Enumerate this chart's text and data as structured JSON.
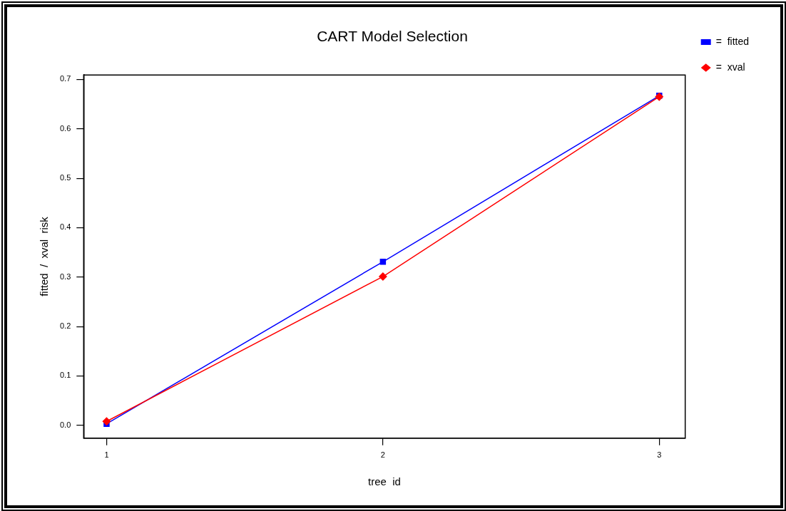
{
  "chart_data": {
    "type": "line",
    "title": "CART Model Selection",
    "xlabel": "tree  id",
    "ylabel": "fitted  /  xval  risk",
    "x": [
      1,
      2,
      3
    ],
    "series": [
      {
        "name": "=  fitted",
        "color": "#0000ff",
        "marker": "square",
        "values": [
          0.003,
          0.331,
          0.667
        ]
      },
      {
        "name": "=  xval",
        "color": "#ff0000",
        "marker": "diamond",
        "values": [
          0.008,
          0.301,
          0.665
        ]
      }
    ],
    "xlim": [
      0.917,
      3.094
    ],
    "xticks": [
      1,
      2,
      3
    ],
    "ylim": [
      -0.026,
      0.709
    ],
    "yticks": [
      {
        "value": 0,
        "label": "0.0"
      },
      0.1,
      0.2,
      0.3,
      0.4,
      0.5,
      0.6,
      0.7
    ],
    "grid": false,
    "legend": "top right",
    "line_style": "solid"
  }
}
